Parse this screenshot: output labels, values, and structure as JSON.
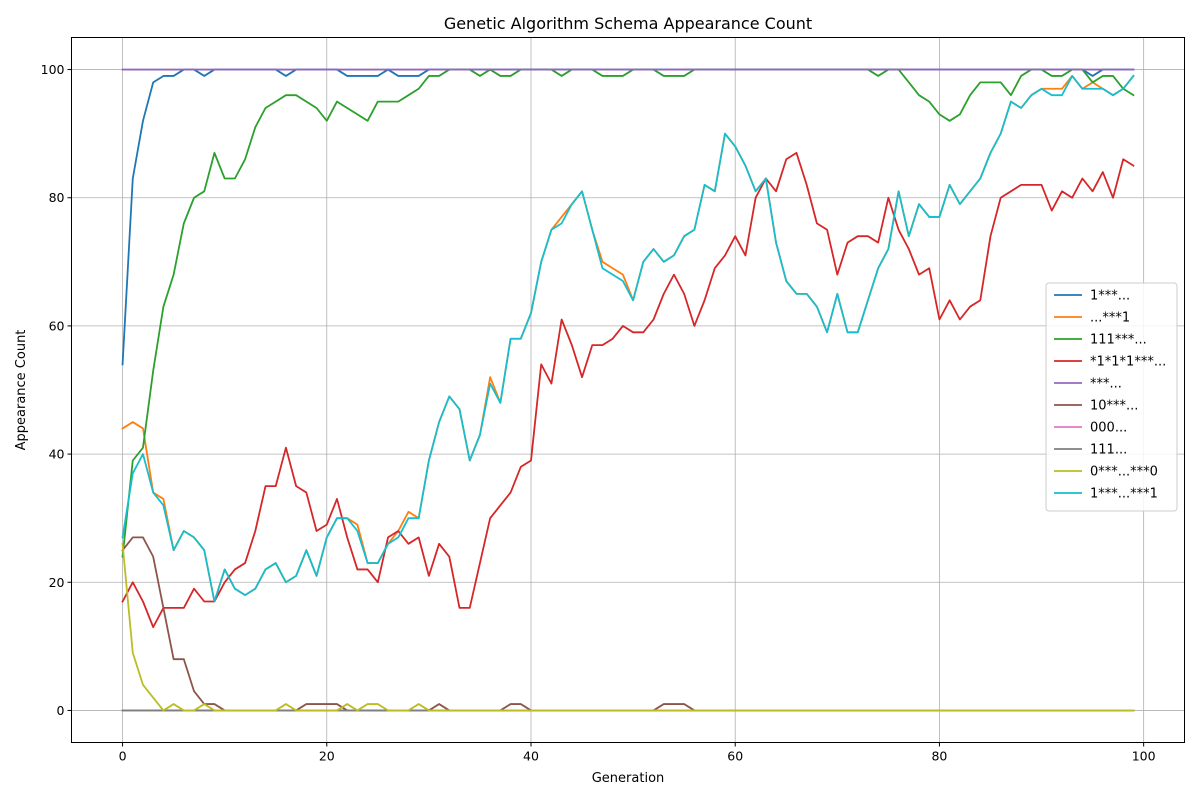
{
  "chart_data": {
    "type": "line",
    "title": "Genetic Algorithm Schema Appearance Count",
    "xlabel": "Generation",
    "ylabel": "Appearance Count",
    "xlim": [
      -5,
      104
    ],
    "ylim": [
      -5,
      105
    ],
    "xticks": [
      0,
      20,
      40,
      60,
      80,
      100
    ],
    "yticks": [
      0,
      20,
      40,
      60,
      80,
      100
    ],
    "grid": true,
    "legend_position": "center-right",
    "x": [
      0,
      1,
      2,
      3,
      4,
      5,
      6,
      7,
      8,
      9,
      10,
      11,
      12,
      13,
      14,
      15,
      16,
      17,
      18,
      19,
      20,
      21,
      22,
      23,
      24,
      25,
      26,
      27,
      28,
      29,
      30,
      31,
      32,
      33,
      34,
      35,
      36,
      37,
      38,
      39,
      40,
      41,
      42,
      43,
      44,
      45,
      46,
      47,
      48,
      49,
      50,
      51,
      52,
      53,
      54,
      55,
      56,
      57,
      58,
      59,
      60,
      61,
      62,
      63,
      64,
      65,
      66,
      67,
      68,
      69,
      70,
      71,
      72,
      73,
      74,
      75,
      76,
      77,
      78,
      79,
      80,
      81,
      82,
      83,
      84,
      85,
      86,
      87,
      88,
      89,
      90,
      91,
      92,
      93,
      94,
      95,
      96,
      97,
      98,
      99
    ],
    "series": [
      {
        "name": "1***...",
        "color": "#1f77b4",
        "values": [
          54,
          83,
          92,
          98,
          99,
          99,
          100,
          100,
          99,
          100,
          100,
          100,
          100,
          100,
          100,
          100,
          99,
          100,
          100,
          100,
          100,
          100,
          99,
          99,
          99,
          99,
          100,
          99,
          99,
          99,
          100,
          100,
          100,
          100,
          100,
          100,
          100,
          100,
          100,
          100,
          100,
          100,
          100,
          100,
          100,
          100,
          100,
          100,
          100,
          100,
          100,
          100,
          100,
          100,
          100,
          100,
          100,
          100,
          100,
          100,
          100,
          100,
          100,
          100,
          100,
          100,
          100,
          100,
          100,
          100,
          100,
          100,
          100,
          100,
          100,
          100,
          100,
          100,
          100,
          100,
          100,
          100,
          100,
          100,
          100,
          100,
          100,
          100,
          100,
          100,
          100,
          100,
          100,
          100,
          100,
          99,
          100,
          100,
          100,
          100
        ]
      },
      {
        "name": "...***1",
        "color": "#ff7f0e",
        "values": [
          44,
          45,
          44,
          34,
          33,
          25,
          28,
          27,
          25,
          17,
          22,
          19,
          18,
          19,
          22,
          23,
          20,
          21,
          25,
          21,
          27,
          30,
          30,
          29,
          23,
          23,
          26,
          28,
          31,
          30,
          39,
          45,
          49,
          47,
          39,
          43,
          52,
          48,
          58,
          58,
          62,
          70,
          75,
          77,
          79,
          81,
          75,
          70,
          69,
          68,
          64,
          70,
          72,
          70,
          71,
          74,
          75,
          82,
          81,
          90,
          88,
          85,
          81,
          83,
          73,
          67,
          65,
          65,
          63,
          59,
          65,
          59,
          59,
          64,
          69,
          72,
          81,
          74,
          79,
          77,
          77,
          82,
          79,
          81,
          83,
          87,
          90,
          95,
          94,
          96,
          97,
          97,
          97,
          99,
          97,
          98,
          97,
          96,
          97,
          99
        ]
      },
      {
        "name": "111***...",
        "color": "#2ca02c",
        "values": [
          24,
          39,
          41,
          53,
          63,
          68,
          76,
          80,
          81,
          87,
          83,
          83,
          86,
          91,
          94,
          95,
          96,
          96,
          95,
          94,
          92,
          95,
          94,
          93,
          92,
          95,
          95,
          95,
          96,
          97,
          99,
          99,
          100,
          100,
          100,
          99,
          100,
          99,
          99,
          100,
          100,
          100,
          100,
          99,
          100,
          100,
          100,
          99,
          99,
          99,
          100,
          100,
          100,
          99,
          99,
          99,
          100,
          100,
          100,
          100,
          100,
          100,
          100,
          100,
          100,
          100,
          100,
          100,
          100,
          100,
          100,
          100,
          100,
          100,
          99,
          100,
          100,
          98,
          96,
          95,
          93,
          92,
          93,
          96,
          98,
          98,
          98,
          96,
          99,
          100,
          100,
          99,
          99,
          100,
          100,
          98,
          99,
          99,
          97,
          96
        ]
      },
      {
        "name": "*1*1*1***...",
        "color": "#d62728",
        "values": [
          17,
          20,
          17,
          13,
          16,
          16,
          16,
          19,
          17,
          17,
          20,
          22,
          23,
          28,
          35,
          35,
          41,
          35,
          34,
          28,
          29,
          33,
          27,
          22,
          22,
          20,
          27,
          28,
          26,
          27,
          21,
          26,
          24,
          16,
          16,
          23,
          30,
          32,
          34,
          38,
          39,
          54,
          51,
          61,
          57,
          52,
          57,
          57,
          58,
          60,
          59,
          59,
          61,
          65,
          68,
          65,
          60,
          64,
          69,
          71,
          74,
          71,
          80,
          83,
          81,
          86,
          87,
          82,
          76,
          75,
          68,
          73,
          74,
          74,
          73,
          80,
          75,
          72,
          68,
          69,
          61,
          64,
          61,
          63,
          64,
          74,
          80,
          81,
          82,
          82,
          82,
          78,
          81,
          80,
          83,
          81,
          84,
          80,
          86,
          85
        ]
      },
      {
        "name": "***...",
        "color": "#9467bd",
        "values": [
          100,
          100,
          100,
          100,
          100,
          100,
          100,
          100,
          100,
          100,
          100,
          100,
          100,
          100,
          100,
          100,
          100,
          100,
          100,
          100,
          100,
          100,
          100,
          100,
          100,
          100,
          100,
          100,
          100,
          100,
          100,
          100,
          100,
          100,
          100,
          100,
          100,
          100,
          100,
          100,
          100,
          100,
          100,
          100,
          100,
          100,
          100,
          100,
          100,
          100,
          100,
          100,
          100,
          100,
          100,
          100,
          100,
          100,
          100,
          100,
          100,
          100,
          100,
          100,
          100,
          100,
          100,
          100,
          100,
          100,
          100,
          100,
          100,
          100,
          100,
          100,
          100,
          100,
          100,
          100,
          100,
          100,
          100,
          100,
          100,
          100,
          100,
          100,
          100,
          100,
          100,
          100,
          100,
          100,
          100,
          100,
          100,
          100,
          100,
          100
        ]
      },
      {
        "name": "10***...",
        "color": "#8c564b",
        "values": [
          25,
          27,
          27,
          24,
          16,
          8,
          8,
          3,
          1,
          1,
          0,
          0,
          0,
          0,
          0,
          0,
          0,
          0,
          1,
          1,
          1,
          1,
          0,
          0,
          0,
          0,
          0,
          0,
          0,
          0,
          0,
          1,
          0,
          0,
          0,
          0,
          0,
          0,
          1,
          1,
          0,
          0,
          0,
          0,
          0,
          0,
          0,
          0,
          0,
          0,
          0,
          0,
          0,
          1,
          1,
          1,
          0,
          0,
          0,
          0,
          0,
          0,
          0,
          0,
          0,
          0,
          0,
          0,
          0,
          0,
          0,
          0,
          0,
          0,
          0,
          0,
          0,
          0,
          0,
          0,
          0,
          0,
          0,
          0,
          0,
          0,
          0,
          0,
          0,
          0,
          0,
          0,
          0,
          0,
          0,
          0,
          0,
          0,
          0,
          0
        ]
      },
      {
        "name": "000...",
        "color": "#e377c2",
        "values": [
          0,
          0,
          0,
          0,
          0,
          0,
          0,
          0,
          0,
          0,
          0,
          0,
          0,
          0,
          0,
          0,
          0,
          0,
          0,
          0,
          0,
          0,
          0,
          0,
          0,
          0,
          0,
          0,
          0,
          0,
          0,
          0,
          0,
          0,
          0,
          0,
          0,
          0,
          0,
          0,
          0,
          0,
          0,
          0,
          0,
          0,
          0,
          0,
          0,
          0,
          0,
          0,
          0,
          0,
          0,
          0,
          0,
          0,
          0,
          0,
          0,
          0,
          0,
          0,
          0,
          0,
          0,
          0,
          0,
          0,
          0,
          0,
          0,
          0,
          0,
          0,
          0,
          0,
          0,
          0,
          0,
          0,
          0,
          0,
          0,
          0,
          0,
          0,
          0,
          0,
          0,
          0,
          0,
          0,
          0,
          0,
          0,
          0,
          0,
          0
        ]
      },
      {
        "name": "111...",
        "color": "#7f7f7f",
        "values": [
          0,
          0,
          0,
          0,
          0,
          0,
          0,
          0,
          0,
          0,
          0,
          0,
          0,
          0,
          0,
          0,
          0,
          0,
          0,
          0,
          0,
          0,
          0,
          0,
          0,
          0,
          0,
          0,
          0,
          0,
          0,
          0,
          0,
          0,
          0,
          0,
          0,
          0,
          0,
          0,
          0,
          0,
          0,
          0,
          0,
          0,
          0,
          0,
          0,
          0,
          0,
          0,
          0,
          0,
          0,
          0,
          0,
          0,
          0,
          0,
          0,
          0,
          0,
          0,
          0,
          0,
          0,
          0,
          0,
          0,
          0,
          0,
          0,
          0,
          0,
          0,
          0,
          0,
          0,
          0,
          0,
          0,
          0,
          0,
          0,
          0,
          0,
          0,
          0,
          0,
          0,
          0,
          0,
          0,
          0,
          0,
          0,
          0,
          0,
          0
        ]
      },
      {
        "name": "0***...***0",
        "color": "#bcbd22",
        "values": [
          26,
          9,
          4,
          2,
          0,
          1,
          0,
          0,
          1,
          0,
          0,
          0,
          0,
          0,
          0,
          0,
          1,
          0,
          0,
          0,
          0,
          0,
          1,
          0,
          1,
          1,
          0,
          0,
          0,
          1,
          0,
          0,
          0,
          0,
          0,
          0,
          0,
          0,
          0,
          0,
          0,
          0,
          0,
          0,
          0,
          0,
          0,
          0,
          0,
          0,
          0,
          0,
          0,
          0,
          0,
          0,
          0,
          0,
          0,
          0,
          0,
          0,
          0,
          0,
          0,
          0,
          0,
          0,
          0,
          0,
          0,
          0,
          0,
          0,
          0,
          0,
          0,
          0,
          0,
          0,
          0,
          0,
          0,
          0,
          0,
          0,
          0,
          0,
          0,
          0,
          0,
          0,
          0,
          0,
          0,
          0,
          0,
          0,
          0,
          0
        ]
      },
      {
        "name": "1***...***1",
        "color": "#17becf",
        "values": [
          27,
          37,
          40,
          34,
          32,
          25,
          28,
          27,
          25,
          17,
          22,
          19,
          18,
          19,
          22,
          23,
          20,
          21,
          25,
          21,
          27,
          30,
          30,
          28,
          23,
          23,
          26,
          27,
          30,
          30,
          39,
          45,
          49,
          47,
          39,
          43,
          51,
          48,
          58,
          58,
          62,
          70,
          75,
          76,
          79,
          81,
          75,
          69,
          68,
          67,
          64,
          70,
          72,
          70,
          71,
          74,
          75,
          82,
          81,
          90,
          88,
          85,
          81,
          83,
          73,
          67,
          65,
          65,
          63,
          59,
          65,
          59,
          59,
          64,
          69,
          72,
          81,
          74,
          79,
          77,
          77,
          82,
          79,
          81,
          83,
          87,
          90,
          95,
          94,
          96,
          97,
          96,
          96,
          99,
          97,
          97,
          97,
          96,
          97,
          99
        ]
      }
    ]
  }
}
